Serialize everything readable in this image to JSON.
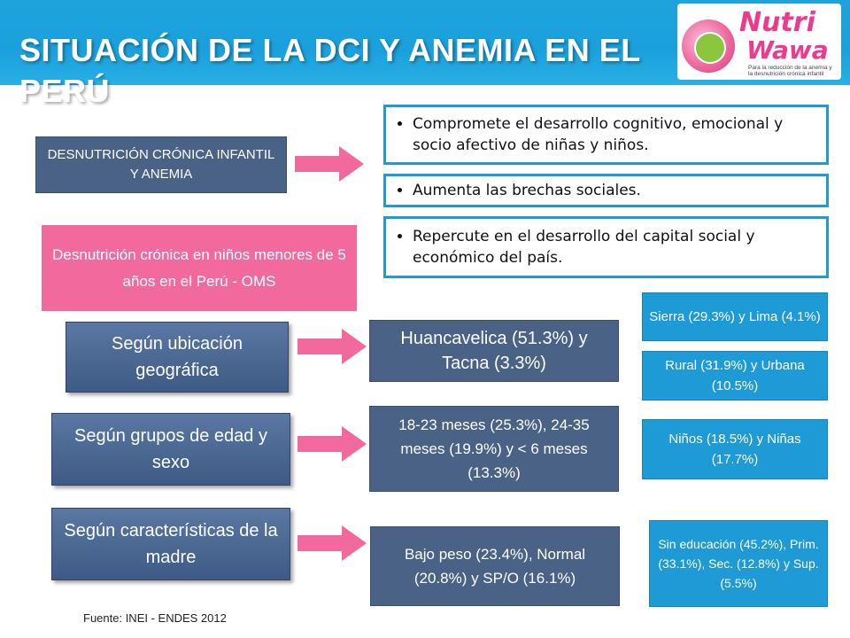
{
  "header": {
    "title": "SITUACIÓN DE LA DCI Y ANEMIA EN EL PERÚ",
    "logo": {
      "name_part1": "Nutri",
      "name_part2": "Wawa",
      "tagline": "Para la reducción de la anemia y la desnutrición crónica infantil"
    }
  },
  "top_section": {
    "label": "DESNUTRICIÓN CRÓNICA INFANTIL Y ANEMIA",
    "bullets": [
      "Compromete el desarrollo cognitivo, emocional y socio afectivo de niñas y niños.",
      "Aumenta las brechas sociales.",
      "Repercute en el desarrollo del capital social y económico del país."
    ]
  },
  "pink_label": "Desnutrición crónica en niños menores de 5 años en el Perú - OMS",
  "rows": [
    {
      "category": "Según ubicación geográfica",
      "value": "Huancavelica (51.3%) y Tacna (3.3%)",
      "details": [
        "Sierra (29.3%) y Lima (4.1%)",
        "Rural  (31.9%) y Urbana (10.5%)"
      ]
    },
    {
      "category": "Según grupos de edad y sexo",
      "value": "18-23 meses (25.3%), 24-35 meses (19.9%) y < 6 meses (13.3%)",
      "details": [
        "Niños (18.5%) y Niñas (17.7%)"
      ]
    },
    {
      "category": "Según características de la madre",
      "value": "Bajo peso  (23.4%), Normal (20.8%) y SP/O (16.1%)",
      "details": [
        "Sin educación (45.2%), Prim. (33.1%), Sec. (12.8%) y Sup. (5.5%)"
      ]
    }
  ],
  "source": "Fuente: INEI - ENDES 2012",
  "colors": {
    "header_blue": "#1ea3dc",
    "slate": "#4a6285",
    "accent_blue": "#1e9ad6",
    "pink": "#f1699d"
  }
}
